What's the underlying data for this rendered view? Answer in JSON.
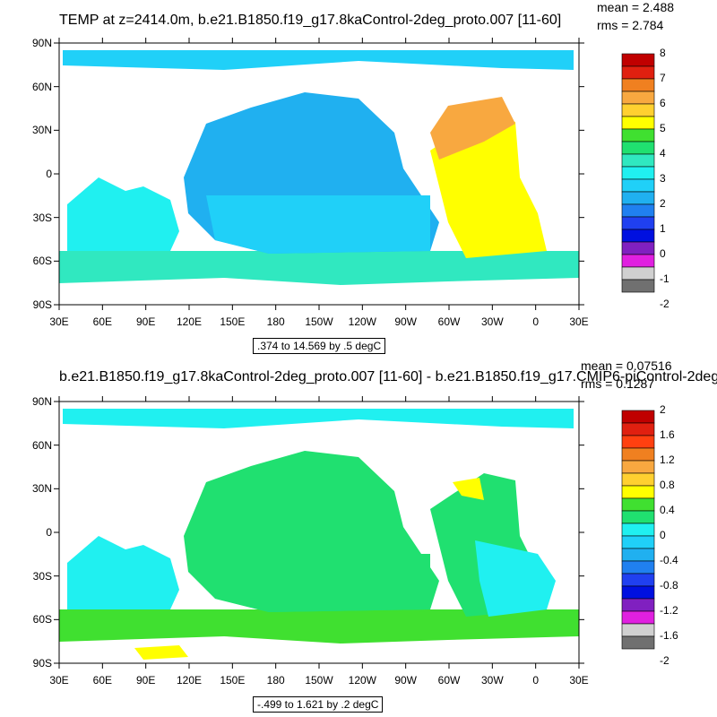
{
  "panel1": {
    "title": "TEMP at z=2414.0m, b.e21.B1850.f19_g17.8kaControl-2deg_proto.007 [11-60]",
    "mean": "mean = 2.488",
    "rms": "rms = 2.784",
    "range": ".374 to 14.569 by .5 degC",
    "colorbar": [
      "8",
      "7",
      "6",
      "5",
      "4",
      "3",
      "2",
      "1",
      "0",
      "-1",
      "-2"
    ],
    "colors": [
      "#c00000",
      "#e02010",
      "#f08020",
      "#f8a840",
      "#ffd030",
      "#ffff00",
      "#40e030",
      "#20e070",
      "#30e8c0",
      "#20f0f0",
      "#20d0f8",
      "#20b0f0",
      "#2080f0",
      "#2040f0",
      "#0010e0",
      "#8020c0",
      "#e020e0",
      "#d0d0d0",
      "#707070"
    ]
  },
  "panel2": {
    "title": "b.e21.B1850.f19_g17.8kaControl-2deg_proto.007 [11-60] - b.e21.B1850.f19_g17.CMIP6-piControl-2deg",
    "mean": "mean = 0.07516",
    "rms": "rms = 0.1287",
    "range": "-.499 to 1.621 by .2 degC",
    "colorbar": [
      "2",
      "1.6",
      "1.2",
      "0.8",
      "0.4",
      "0",
      "-0.4",
      "-0.8",
      "-1.2",
      "-1.6",
      "-2"
    ]
  },
  "axes": {
    "lat_labels": [
      "90N",
      "60N",
      "30N",
      "0",
      "30S",
      "60S",
      "90S"
    ],
    "lon_labels": [
      "30E",
      "60E",
      "90E",
      "120E",
      "150E",
      "180",
      "150W",
      "120W",
      "90W",
      "60W",
      "30W",
      "0",
      "30E"
    ]
  }
}
